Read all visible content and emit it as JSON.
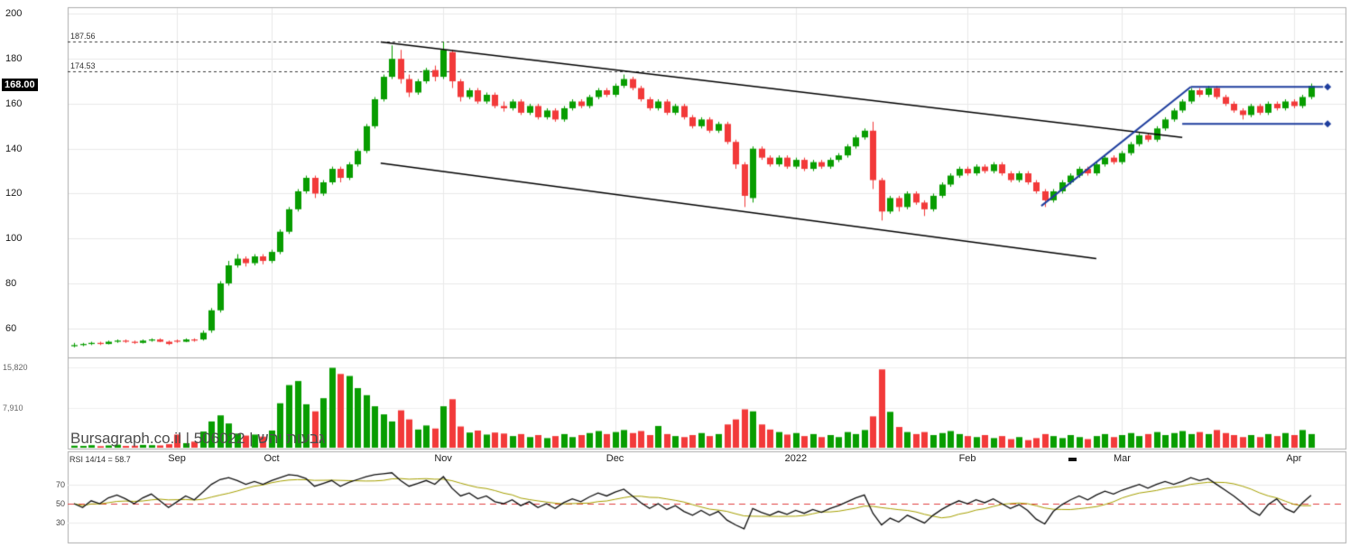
{
  "meta": {
    "watermark": "Bursagraph.co.il | 506022 | גבעות יהש",
    "site": "Bursagraph.co.il",
    "security_id": "506022",
    "security_name": "גבעות יהש"
  },
  "price_axis": {
    "ticks": [
      200,
      180,
      160,
      140,
      120,
      100,
      80,
      60
    ],
    "last_price": "168.00"
  },
  "levels": [
    {
      "label": "187.56",
      "price": 187.56
    },
    {
      "label": "174.53",
      "price": 174.53
    }
  ],
  "volume_axis": {
    "ticks": [
      "15,820",
      "7,910"
    ]
  },
  "rsi_panel": {
    "label": "RSI 14/14 = 58.7",
    "ticks": [
      70,
      50,
      30
    ],
    "value": 58.7,
    "period": "14/14",
    "midline": 50
  },
  "x_axis": {
    "labels": [
      {
        "text": "Sep",
        "i": 12
      },
      {
        "text": "Oct",
        "i": 23
      },
      {
        "text": "Nov",
        "i": 43
      },
      {
        "text": "Dec",
        "i": 63
      },
      {
        "text": "2022",
        "i": 84
      },
      {
        "text": "Feb",
        "i": 104
      },
      {
        "text": "Mar",
        "i": 122
      },
      {
        "text": "Apr",
        "i": 142
      }
    ]
  },
  "chart_data": {
    "type": "candlestick",
    "panels": [
      "price",
      "volume",
      "rsi"
    ],
    "price_range": [
      47,
      203
    ],
    "volume_range": [
      0,
      16800
    ],
    "volume_ticks_values": [
      15820,
      7910
    ],
    "rsi_range": [
      0,
      100
    ],
    "colors": {
      "up": "#089d00",
      "down": "#f23a3a",
      "trend_black": "#000000",
      "trend_blue": "#1f3e9e",
      "rsi_line": "#111111",
      "rsi_smooth": "#a6a000",
      "rsi_mid": "#e04040",
      "grid": "#e9e9e9",
      "border": "#adadad",
      "level_dash": "#3a3a3a"
    },
    "candles": [
      [
        52,
        53.5,
        51.5,
        52.5,
        400
      ],
      [
        52.5,
        53.5,
        52,
        53,
        350
      ],
      [
        53,
        54,
        52.5,
        53.5,
        500
      ],
      [
        53.5,
        54,
        52.5,
        53,
        300
      ],
      [
        53,
        54.5,
        52.8,
        54,
        450
      ],
      [
        54,
        55,
        53.5,
        54.5,
        600
      ],
      [
        54.5,
        55,
        53.5,
        54,
        350
      ],
      [
        54,
        54.5,
        53,
        53.5,
        400
      ],
      [
        53.5,
        55,
        53.2,
        54.5,
        550
      ],
      [
        54.5,
        55.5,
        54,
        55,
        500
      ],
      [
        55,
        55.5,
        53.8,
        54,
        450
      ],
      [
        54,
        54.5,
        52.5,
        53,
        700
      ],
      [
        54.5,
        55,
        53.5,
        54,
        2600
      ],
      [
        54,
        55.5,
        53.8,
        55,
        900
      ],
      [
        55,
        55.5,
        54,
        54.5,
        1200
      ],
      [
        55,
        59,
        54.5,
        58,
        3200
      ],
      [
        59,
        69,
        58,
        68,
        5200
      ],
      [
        68,
        81,
        67,
        80,
        6400
      ],
      [
        80,
        90,
        79,
        88,
        4800
      ],
      [
        88,
        93,
        87,
        91,
        2800
      ],
      [
        91,
        92,
        87.5,
        89,
        2400
      ],
      [
        89,
        93,
        88,
        92,
        2600
      ],
      [
        92,
        93,
        88.5,
        90,
        2200
      ],
      [
        90,
        95,
        89,
        94,
        3400
      ],
      [
        94,
        104,
        93,
        103,
        8800
      ],
      [
        103,
        114,
        102,
        113,
        12400
      ],
      [
        113,
        122,
        112,
        121,
        13200
      ],
      [
        121,
        128,
        120,
        127,
        8600
      ],
      [
        127,
        128,
        118,
        120,
        7200
      ],
      [
        120,
        126,
        119,
        125,
        9800
      ],
      [
        125,
        132,
        124,
        131,
        15820
      ],
      [
        131,
        132,
        125,
        127,
        14600
      ],
      [
        127,
        134,
        126,
        133,
        14200
      ],
      [
        133,
        140,
        132,
        139,
        11800
      ],
      [
        139,
        151,
        138,
        150,
        10400
      ],
      [
        150,
        163,
        149,
        162,
        8200
      ],
      [
        162,
        173,
        161,
        172,
        6600
      ],
      [
        172,
        186,
        171,
        180,
        5200
      ],
      [
        180,
        184,
        169,
        171,
        7400
      ],
      [
        171,
        173,
        163,
        165,
        5600
      ],
      [
        165,
        171,
        164,
        170,
        3600
      ],
      [
        170,
        176,
        169,
        175,
        4400
      ],
      [
        175,
        177,
        170,
        172,
        3800
      ],
      [
        172,
        187.56,
        171,
        184,
        8200
      ],
      [
        183,
        184,
        167,
        170,
        9600
      ],
      [
        170,
        171,
        161,
        163,
        4200
      ],
      [
        163,
        167,
        162,
        166,
        3000
      ],
      [
        166,
        167,
        160,
        161,
        3400
      ],
      [
        161,
        165,
        160,
        164,
        2600
      ],
      [
        164,
        165,
        158,
        159,
        3000
      ],
      [
        159,
        161,
        156.5,
        158,
        2800
      ],
      [
        158,
        162,
        157,
        161,
        2300
      ],
      [
        161,
        162,
        155,
        156,
        2700
      ],
      [
        156,
        160,
        155,
        159,
        2100
      ],
      [
        159,
        160,
        153,
        154,
        2500
      ],
      [
        154,
        158,
        153,
        157,
        1900
      ],
      [
        157,
        158,
        152,
        153,
        2300
      ],
      [
        153,
        159,
        152,
        158,
        2700
      ],
      [
        158,
        162,
        157,
        161,
        2100
      ],
      [
        161,
        162,
        158,
        159,
        2500
      ],
      [
        159,
        164,
        158,
        163,
        2900
      ],
      [
        163,
        167,
        162,
        166,
        3300
      ],
      [
        166,
        167,
        163,
        164,
        2700
      ],
      [
        164,
        169,
        163,
        168,
        3100
      ],
      [
        168,
        173,
        167,
        171,
        3500
      ],
      [
        171,
        172,
        166,
        167,
        2900
      ],
      [
        167,
        168,
        161,
        162,
        3300
      ],
      [
        162,
        163,
        157,
        158,
        2500
      ],
      [
        158,
        162,
        157,
        161,
        4300
      ],
      [
        161,
        162,
        155,
        156,
        2700
      ],
      [
        156,
        160,
        155,
        159,
        2300
      ],
      [
        159,
        160,
        153,
        154,
        2100
      ],
      [
        154,
        155,
        149,
        150,
        2500
      ],
      [
        150,
        154,
        149,
        153,
        2900
      ],
      [
        153,
        154,
        147,
        148,
        2300
      ],
      [
        148,
        152,
        147,
        151,
        2700
      ],
      [
        151,
        152,
        142,
        143,
        4600
      ],
      [
        143,
        144,
        131,
        133,
        5600
      ],
      [
        133,
        134,
        114,
        119,
        7600
      ],
      [
        118,
        141,
        116,
        140,
        7200
      ],
      [
        140,
        141,
        135,
        136,
        4600
      ],
      [
        136,
        137,
        132,
        133,
        3600
      ],
      [
        133,
        137,
        132,
        136,
        3100
      ],
      [
        136,
        137,
        131,
        132,
        2600
      ],
      [
        132,
        136,
        131,
        135,
        2900
      ],
      [
        135,
        136,
        130,
        131,
        2300
      ],
      [
        131,
        135,
        130,
        134,
        2700
      ],
      [
        134,
        135,
        131,
        132,
        2100
      ],
      [
        132,
        136,
        131,
        135,
        2500
      ],
      [
        135,
        138,
        134,
        137,
        2100
      ],
      [
        137,
        142,
        136,
        141,
        3100
      ],
      [
        141,
        146,
        140,
        145,
        2700
      ],
      [
        145,
        149,
        144,
        148,
        3500
      ],
      [
        148,
        152,
        122,
        126,
        6200
      ],
      [
        126,
        127,
        108,
        112,
        15500
      ],
      [
        112,
        119,
        111,
        118,
        7100
      ],
      [
        118,
        119,
        112,
        114,
        4100
      ],
      [
        114,
        121,
        113,
        120,
        3100
      ],
      [
        120,
        121,
        115,
        116,
        2700
      ],
      [
        116,
        117,
        110,
        113,
        3100
      ],
      [
        113,
        120,
        112,
        119,
        2500
      ],
      [
        119,
        125,
        118,
        124,
        2900
      ],
      [
        124,
        129,
        123,
        128,
        3300
      ],
      [
        128,
        132,
        127,
        131,
        2700
      ],
      [
        131,
        132,
        128,
        129,
        2300
      ],
      [
        129,
        133,
        128,
        132,
        2100
      ],
      [
        132,
        133,
        129,
        130,
        2500
      ],
      [
        130,
        134,
        129,
        133,
        1900
      ],
      [
        133,
        134,
        128,
        129,
        2300
      ],
      [
        129,
        130,
        125,
        126,
        1700
      ],
      [
        126,
        130,
        125,
        129,
        2100
      ],
      [
        129,
        130,
        124,
        125,
        1500
      ],
      [
        125,
        126,
        120,
        121,
        1900
      ],
      [
        121,
        122,
        114,
        117,
        2700
      ],
      [
        117,
        122,
        116,
        121,
        2300
      ],
      [
        121,
        126,
        120,
        125,
        1900
      ],
      [
        125,
        129,
        124,
        128,
        2500
      ],
      [
        128,
        132,
        127,
        131,
        2100
      ],
      [
        131,
        132,
        128,
        129,
        1700
      ],
      [
        129,
        134,
        128,
        133,
        2300
      ],
      [
        133,
        137,
        132,
        136,
        2700
      ],
      [
        136,
        137,
        133,
        134,
        2100
      ],
      [
        134,
        139,
        133,
        138,
        2500
      ],
      [
        138,
        143,
        137,
        142,
        2900
      ],
      [
        142,
        147,
        141,
        146,
        2300
      ],
      [
        146,
        147,
        143,
        144,
        2700
      ],
      [
        144,
        150,
        143,
        149,
        3100
      ],
      [
        149,
        154,
        148,
        153,
        2500
      ],
      [
        153,
        158,
        152,
        157,
        2900
      ],
      [
        157,
        162,
        156,
        161,
        3300
      ],
      [
        161,
        167,
        160,
        166,
        2700
      ],
      [
        166,
        167,
        163,
        164,
        3100
      ],
      [
        164,
        168,
        163,
        167,
        2700
      ],
      [
        167,
        168,
        162,
        163,
        3500
      ],
      [
        163,
        164,
        159,
        160,
        2900
      ],
      [
        160,
        161,
        156,
        157,
        2500
      ],
      [
        157,
        158,
        153,
        155,
        2100
      ],
      [
        155,
        160,
        154,
        159,
        2500
      ],
      [
        159,
        160,
        155,
        156,
        2100
      ],
      [
        156,
        161,
        155,
        160,
        2700
      ],
      [
        160,
        161,
        157,
        158,
        2300
      ],
      [
        158,
        162,
        157,
        161,
        2900
      ],
      [
        161,
        162,
        158,
        159,
        2500
      ],
      [
        159,
        164,
        158,
        163,
        3500
      ],
      [
        163,
        169,
        162,
        168,
        2700
      ]
    ],
    "rsi": [
      50,
      46,
      53,
      50,
      56,
      59,
      55,
      50,
      56,
      60,
      53,
      46,
      52,
      58,
      54,
      62,
      70,
      75,
      77,
      74,
      70,
      73,
      70,
      74,
      77,
      80,
      79,
      76,
      68,
      71,
      74,
      68,
      72,
      75,
      78,
      80,
      81,
      82,
      74,
      68,
      71,
      74,
      70,
      78,
      66,
      58,
      61,
      55,
      58,
      52,
      50,
      54,
      48,
      52,
      46,
      50,
      45,
      51,
      55,
      52,
      57,
      61,
      58,
      62,
      65,
      58,
      51,
      45,
      50,
      44,
      48,
      42,
      38,
      43,
      38,
      42,
      33,
      28,
      24,
      45,
      41,
      38,
      42,
      39,
      43,
      40,
      44,
      41,
      45,
      48,
      52,
      56,
      59,
      40,
      28,
      35,
      31,
      38,
      34,
      30,
      38,
      44,
      49,
      53,
      50,
      54,
      51,
      55,
      50,
      45,
      49,
      43,
      34,
      29,
      42,
      49,
      54,
      58,
      54,
      59,
      63,
      60,
      64,
      67,
      70,
      66,
      70,
      73,
      70,
      73,
      77,
      74,
      76,
      70,
      64,
      58,
      51,
      43,
      38,
      49,
      55,
      45,
      41,
      51,
      58.7
    ],
    "trendlines": [
      {
        "i1": 35.7,
        "p1": 187.5,
        "i2": 129,
        "p2": 145,
        "color": "#000000",
        "w": 1.5
      },
      {
        "i1": 35.7,
        "p1": 133.5,
        "i2": 119,
        "p2": 91,
        "color": "#000000",
        "w": 1.5
      },
      {
        "i1": 112.6,
        "p1": 114.5,
        "i2": 130,
        "p2": 167.5,
        "color": "#1f3e9e",
        "w": 2
      },
      {
        "i1": 130,
        "p1": 167.5,
        "i2": 145.4,
        "p2": 167.5,
        "color": "#1f3e9e",
        "w": 2,
        "marker": "diamond"
      },
      {
        "i1": 129,
        "p1": 151,
        "i2": 145.4,
        "p2": 151,
        "color": "#1f3e9e",
        "w": 2,
        "marker": "diamond"
      }
    ]
  }
}
